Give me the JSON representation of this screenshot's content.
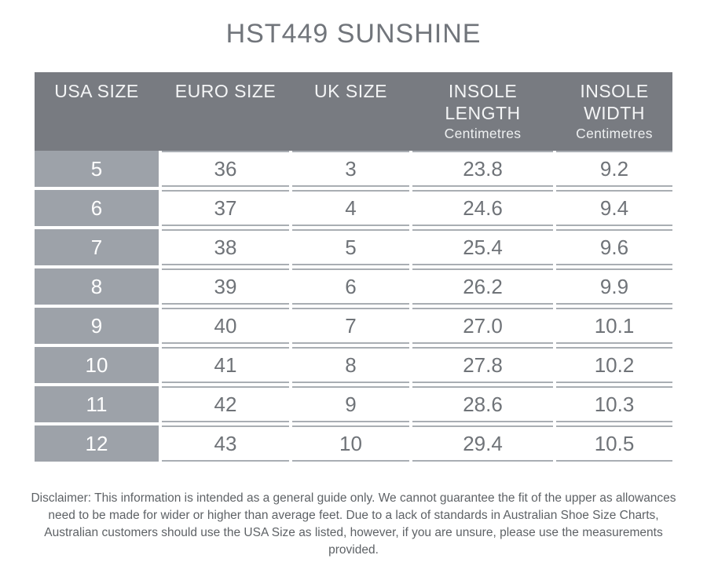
{
  "title": "HST449 SUNSHINE",
  "table": {
    "columns": [
      {
        "label": "USA SIZE",
        "sub": ""
      },
      {
        "label": "EURO SIZE",
        "sub": ""
      },
      {
        "label": "UK SIZE",
        "sub": ""
      },
      {
        "label": "INSOLE LENGTH",
        "sub": "Centimetres"
      },
      {
        "label": "INSOLE WIDTH",
        "sub": "Centimetres"
      }
    ],
    "rows": [
      [
        "5",
        "36",
        "3",
        "23.8",
        "9.2"
      ],
      [
        "6",
        "37",
        "4",
        "24.6",
        "9.4"
      ],
      [
        "7",
        "38",
        "5",
        "25.4",
        "9.6"
      ],
      [
        "8",
        "39",
        "6",
        "26.2",
        "9.9"
      ],
      [
        "9",
        "40",
        "7",
        "27.0",
        "10.1"
      ],
      [
        "10",
        "41",
        "8",
        "27.8",
        "10.2"
      ],
      [
        "11",
        "42",
        "9",
        "28.6",
        "10.3"
      ],
      [
        "12",
        "43",
        "10",
        "29.4",
        "10.5"
      ]
    ]
  },
  "chart_data": {
    "type": "table",
    "title": "HST449 SUNSHINE",
    "columns": [
      "USA SIZE",
      "EURO SIZE",
      "UK SIZE",
      "INSOLE LENGTH Centimetres",
      "INSOLE WIDTH Centimetres"
    ],
    "rows": [
      [
        5,
        36,
        3,
        23.8,
        9.2
      ],
      [
        6,
        37,
        4,
        24.6,
        9.4
      ],
      [
        7,
        38,
        5,
        25.4,
        9.6
      ],
      [
        8,
        39,
        6,
        26.2,
        9.9
      ],
      [
        9,
        40,
        7,
        27.0,
        10.1
      ],
      [
        10,
        41,
        8,
        27.8,
        10.2
      ],
      [
        11,
        42,
        9,
        28.6,
        10.3
      ],
      [
        12,
        43,
        10,
        29.4,
        10.5
      ]
    ]
  },
  "disclaimer": "Disclaimer: This information is intended as a general guide only. We cannot guarantee the fit of the upper as allowances need to be made for wider or higher than average feet. Due to a lack of standards in Australian Shoe Size Charts, Australian customers should use the USA Size as listed, however, if you are unsure, please use the measurements provided.",
  "colors": {
    "header_bg": "#787b81",
    "row_label_bg": "#9da2a9",
    "cell_border": "#a9aeb3",
    "cell_text": "#6f7378",
    "title_text": "#71757b",
    "disclaimer_text": "#5e6266"
  }
}
